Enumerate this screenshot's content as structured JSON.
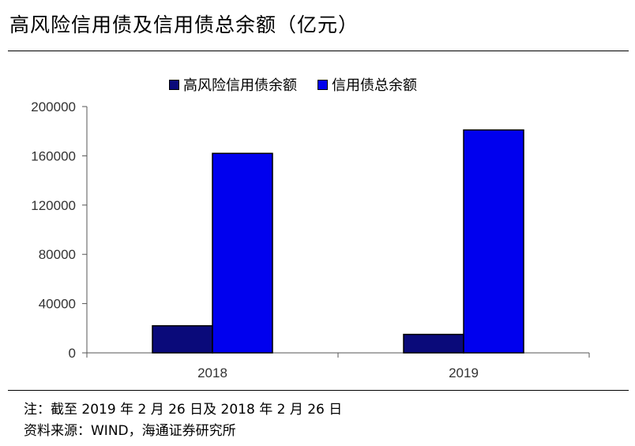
{
  "header": {
    "title": "高风险信用债及信用债总余额（亿元）"
  },
  "footer": {
    "note": "注：截至 2019 年 2 月 26 日及 2018 年 2 月 26 日",
    "source": "资料来源：WIND，海通证券研究所"
  },
  "colors": {
    "high_risk": "#0a0a7a",
    "total": "#0000ee"
  },
  "chart_data": {
    "type": "bar",
    "title": "高风险信用债及信用债总余额（亿元）",
    "categories": [
      "2018",
      "2019"
    ],
    "series": [
      {
        "name": "高风险信用债余额",
        "values": [
          22000,
          15000
        ],
        "color": "#0a0a7a"
      },
      {
        "name": "信用债总余额",
        "values": [
          162000,
          181000
        ],
        "color": "#0000ee"
      }
    ],
    "ylim": [
      0,
      200000
    ],
    "yticks": [
      "0",
      "40000",
      "80000",
      "120000",
      "160000",
      "200000"
    ],
    "xlabel": "",
    "ylabel": "",
    "legend_position": "top",
    "grid": false
  }
}
